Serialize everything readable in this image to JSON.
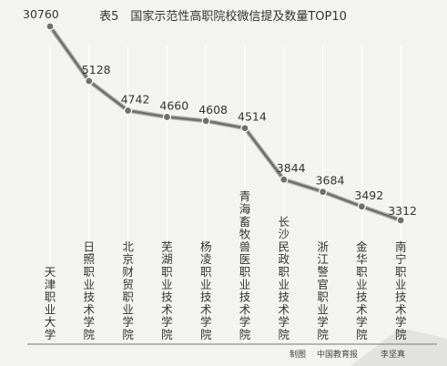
{
  "chart_data": {
    "type": "line",
    "title": "表5　国家示范性高职院校微信提及数量TOP10",
    "categories": [
      "天津职业大学",
      "日照职业技术学院",
      "北京财贸职业学院",
      "芜湖职业技术学院",
      "杨凌职业技术学院",
      "青海畜牧兽医职业技术学院",
      "长沙民政职业技术学院",
      "浙江警官职业学院",
      "金华职业技术学院",
      "南宁职业技术学院"
    ],
    "values": [
      30760,
      5128,
      4742,
      4660,
      4608,
      4514,
      3844,
      3684,
      3492,
      3312
    ],
    "xlabel": "",
    "ylabel": "",
    "grid": "vertical",
    "colors": {
      "line": "#6f6f6f",
      "marker": "#707070",
      "grid": "#ffffff",
      "text": "#333333"
    }
  },
  "credits": {
    "producer_label": "制图",
    "source": "中国教育报",
    "author": "李坚真"
  }
}
